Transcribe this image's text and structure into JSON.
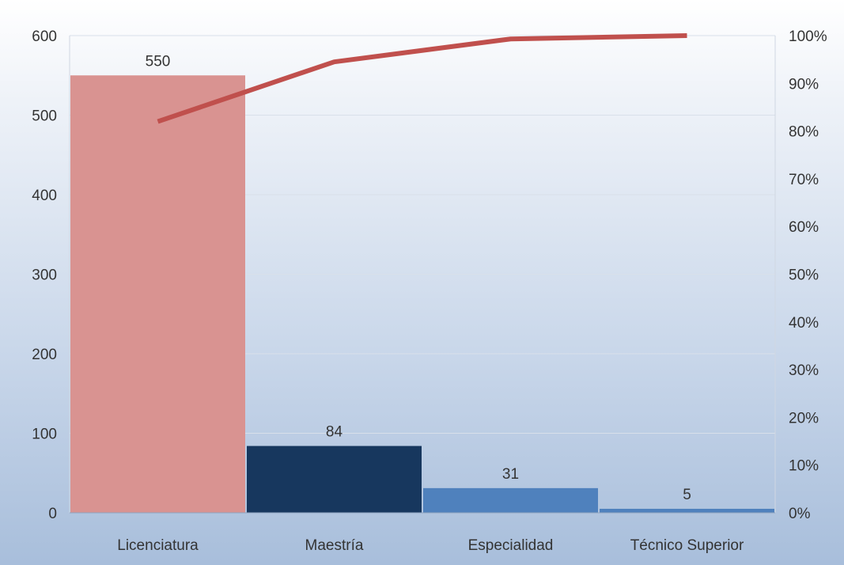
{
  "chart_data": {
    "type": "bar",
    "categories": [
      "Licenciatura",
      "Maestría",
      "Especialidad",
      "Técnico Superior"
    ],
    "values": [
      550,
      84,
      31,
      5
    ],
    "data_labels": [
      "550",
      "84",
      "31",
      "5"
    ],
    "bar_colors": [
      "#d99391",
      "#17375e",
      "#4f81bd",
      "#4f81bd"
    ],
    "line_series": {
      "type": "line",
      "axis": "right",
      "values": [
        82,
        94.5,
        99.3,
        100
      ],
      "color": "#c0504d"
    },
    "ylim": [
      0,
      600
    ],
    "y_ticks": [
      "0",
      "100",
      "200",
      "300",
      "400",
      "500",
      "600"
    ],
    "y2lim": [
      0,
      100
    ],
    "y2_ticks": [
      "0%",
      "10%",
      "20%",
      "30%",
      "40%",
      "50%",
      "60%",
      "70%",
      "80%",
      "90%",
      "100%"
    ],
    "grid": true,
    "legend": "none"
  }
}
